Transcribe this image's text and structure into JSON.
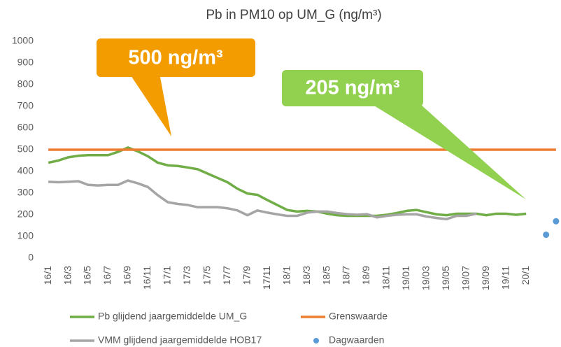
{
  "chart_data": {
    "type": "line",
    "title": "Pb in PM10 op UM_G (ng/m³)",
    "annotations": [
      "500 ng/m³",
      "205 ng/m³"
    ],
    "categories": [
      "16/1",
      null,
      "16/3",
      null,
      "16/5",
      null,
      "16/7",
      null,
      "16/9",
      null,
      "16/11",
      null,
      "17/1",
      null,
      "17/3",
      null,
      "17/5",
      null,
      "17/7",
      null,
      "17/9",
      null,
      "17/11",
      null,
      "18/1",
      null,
      "18/3",
      null,
      "18/5",
      null,
      "18/7",
      null,
      "18/9",
      null,
      "18/11",
      null,
      "19/01",
      null,
      "19/03",
      null,
      "19/05",
      null,
      "19/07",
      null,
      "19/09",
      null,
      "19/11",
      null,
      "20/1",
      null,
      null,
      null
    ],
    "ylim": [
      0,
      1000
    ],
    "yticks": [
      0,
      100,
      200,
      300,
      400,
      500,
      600,
      700,
      800,
      900,
      1000
    ],
    "grid": false,
    "legend": "bottom",
    "series": [
      {
        "name": "Pb glijdend jaargemiddelde UM_G",
        "color": "#70ad47",
        "mode": "line",
        "values": [
          440,
          450,
          465,
          472,
          475,
          475,
          475,
          490,
          510,
          492,
          470,
          440,
          428,
          425,
          418,
          410,
          390,
          370,
          350,
          320,
          298,
          292,
          268,
          245,
          222,
          215,
          218,
          215,
          205,
          198,
          195,
          195,
          195,
          195,
          200,
          208,
          218,
          222,
          212,
          202,
          198,
          205,
          205,
          205,
          198,
          205,
          205,
          200,
          205,
          null,
          null,
          null
        ]
      },
      {
        "name": "Grenswaarde",
        "color": "#ed7d31",
        "mode": "line",
        "values": [
          500,
          500,
          500,
          500,
          500,
          500,
          500,
          500,
          500,
          500,
          500,
          500,
          500,
          500,
          500,
          500,
          500,
          500,
          500,
          500,
          500,
          500,
          500,
          500,
          500,
          500,
          500,
          500,
          500,
          500,
          500,
          500,
          500,
          500,
          500,
          500,
          500,
          500,
          500,
          500,
          500,
          500,
          500,
          500,
          500,
          500,
          500,
          500,
          500,
          500,
          500,
          500
        ]
      },
      {
        "name": "VMM glijdend jaargemiddelde HOB17",
        "color": "#a5a5a5",
        "mode": "line",
        "values": [
          352,
          350,
          352,
          355,
          338,
          335,
          338,
          338,
          358,
          345,
          328,
          290,
          258,
          250,
          245,
          235,
          235,
          235,
          230,
          220,
          198,
          220,
          210,
          202,
          195,
          195,
          210,
          215,
          215,
          208,
          203,
          200,
          203,
          188,
          195,
          200,
          202,
          202,
          192,
          185,
          180,
          195,
          195,
          205,
          null,
          null,
          null,
          null,
          null,
          null,
          null,
          null
        ]
      },
      {
        "name": "Dagwaarden",
        "color": "#5b9bd5",
        "mode": "markers",
        "values": [
          null,
          null,
          null,
          null,
          null,
          null,
          null,
          null,
          null,
          null,
          null,
          null,
          null,
          null,
          null,
          null,
          null,
          null,
          null,
          null,
          null,
          null,
          null,
          null,
          null,
          null,
          null,
          null,
          null,
          null,
          null,
          null,
          null,
          null,
          null,
          null,
          null,
          null,
          null,
          null,
          null,
          null,
          null,
          null,
          null,
          null,
          null,
          null,
          null,
          null,
          108,
          170
        ]
      }
    ]
  }
}
